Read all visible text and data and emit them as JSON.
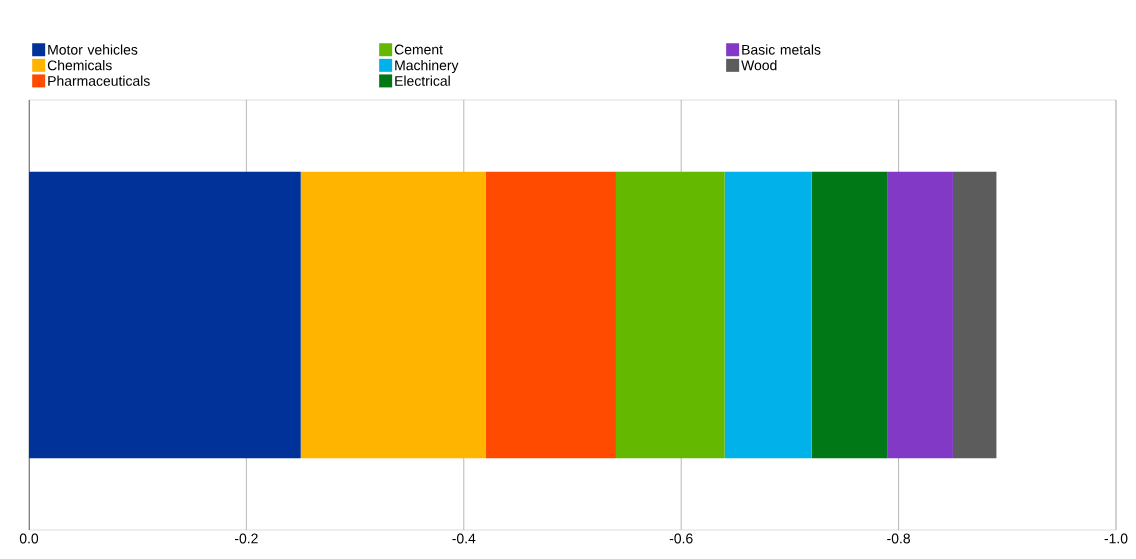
{
  "chart_data": {
    "type": "bar",
    "orientation": "horizontal",
    "stacked": true,
    "categories": [
      null
    ],
    "series": [
      {
        "name": "Motor vehicles",
        "color": "#003299",
        "values": [
          -0.25
        ]
      },
      {
        "name": "Chemicals",
        "color": "#ffb400",
        "values": [
          -0.17
        ]
      },
      {
        "name": "Pharmaceuticals",
        "color": "#ff4b00",
        "values": [
          -0.12
        ]
      },
      {
        "name": "Cement",
        "color": "#65b800",
        "values": [
          -0.1
        ]
      },
      {
        "name": "Machinery",
        "color": "#00b1ea",
        "values": [
          -0.08
        ]
      },
      {
        "name": "Electrical",
        "color": "#007816",
        "values": [
          -0.07
        ]
      },
      {
        "name": "Basic metals",
        "color": "#8139c6",
        "values": [
          -0.06
        ]
      },
      {
        "name": "Wood",
        "color": "#5c5c5c",
        "values": [
          -0.04
        ]
      }
    ],
    "xlim": [
      0,
      -1.0
    ],
    "xticks": [
      {
        "value": 0,
        "label": "0.0"
      },
      -0.2,
      -0.4,
      -0.6,
      -0.8,
      {
        "value": -1.0,
        "label": "-1.0"
      }
    ],
    "grid": "x",
    "legend": "top"
  }
}
